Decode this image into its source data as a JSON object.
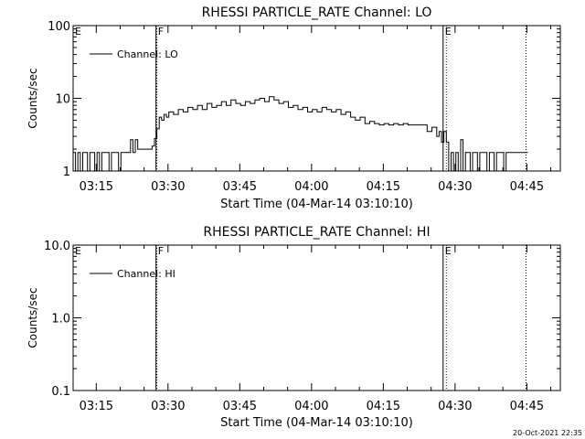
{
  "footer_timestamp": "20-Oct-2021 22:35",
  "chart_data": [
    {
      "type": "line",
      "title": "RHESSI PARTICLE_RATE Channel: LO",
      "xlabel": "Start Time (04-Mar-14 03:10:10)",
      "ylabel": "Counts/sec",
      "y_scale": "log",
      "xlim": [
        "03:10:10",
        "04:52:00"
      ],
      "ylim": [
        1,
        100
      ],
      "x_ticks": [
        "03:15",
        "03:30",
        "03:45",
        "04:00",
        "04:15",
        "04:30",
        "04:45"
      ],
      "y_ticks": [
        "1",
        "10",
        "100"
      ],
      "legend": {
        "position": "top-left",
        "entries": [
          "Channel: LO"
        ]
      },
      "markers": [
        {
          "label": "E",
          "time": "03:10:10"
        },
        {
          "label": "F",
          "time": "03:27:30"
        },
        {
          "label": "E",
          "time": "04:27:30"
        }
      ],
      "dotted_lines": [
        "03:27:40",
        "04:28:10",
        "04:44:50"
      ],
      "series": [
        {
          "name": "Channel: LO",
          "x": [
            "03:10:10",
            "03:10:40",
            "03:11:10",
            "03:11:40",
            "03:12:10",
            "03:12:40",
            "03:13:10",
            "03:13:40",
            "03:14:10",
            "03:14:40",
            "03:15:10",
            "03:15:40",
            "03:16:10",
            "03:16:40",
            "03:17:10",
            "03:17:40",
            "03:18:10",
            "03:18:40",
            "03:19:10",
            "03:19:40",
            "03:20:10",
            "03:20:40",
            "03:21:10",
            "03:21:40",
            "03:22:10",
            "03:22:40",
            "03:23:10",
            "03:23:40",
            "03:24:10",
            "03:24:40",
            "03:25:10",
            "03:25:40",
            "03:26:10",
            "03:26:40",
            "03:27:10",
            "03:27:40",
            "03:28:10",
            "03:28:40",
            "03:29:10",
            "03:29:40",
            "03:30:10",
            "03:31:10",
            "03:32:10",
            "03:33:10",
            "03:34:10",
            "03:35:10",
            "03:36:10",
            "03:37:10",
            "03:38:10",
            "03:39:10",
            "03:40:10",
            "03:41:10",
            "03:42:10",
            "03:43:10",
            "03:44:10",
            "03:45:10",
            "03:46:10",
            "03:47:10",
            "03:48:10",
            "03:49:10",
            "03:50:10",
            "03:51:10",
            "03:52:10",
            "03:53:10",
            "03:54:10",
            "03:55:10",
            "03:56:10",
            "03:57:10",
            "03:58:10",
            "03:59:10",
            "04:00:10",
            "04:01:10",
            "04:02:10",
            "04:03:10",
            "04:04:10",
            "04:05:10",
            "04:06:10",
            "04:07:10",
            "04:08:10",
            "04:09:10",
            "04:10:10",
            "04:11:10",
            "04:12:10",
            "04:13:10",
            "04:14:10",
            "04:15:10",
            "04:16:10",
            "04:17:10",
            "04:18:10",
            "04:19:10",
            "04:20:10",
            "04:21:10",
            "04:22:10",
            "04:23:10",
            "04:24:10",
            "04:25:10",
            "04:26:10",
            "04:26:40",
            "04:27:10",
            "04:27:40",
            "04:28:10",
            "04:28:40",
            "04:29:10",
            "04:29:40",
            "04:30:10",
            "04:30:40",
            "04:31:10",
            "04:31:40",
            "04:32:10",
            "04:32:40",
            "04:33:10",
            "04:33:40",
            "04:34:10",
            "04:34:40",
            "04:35:10",
            "04:35:40",
            "04:36:10",
            "04:36:40",
            "04:37:10",
            "04:37:40",
            "04:38:10",
            "04:38:40",
            "04:39:10",
            "04:39:40",
            "04:40:10",
            "04:40:40",
            "04:41:10",
            "04:42:10",
            "04:43:10",
            "04:44:10",
            "04:44:50"
          ],
          "values": [
            1.8,
            1.0,
            1.8,
            1.0,
            1.8,
            1.8,
            1.0,
            1.8,
            1.8,
            1.0,
            1.8,
            1.0,
            1.8,
            1.8,
            1.8,
            1.0,
            1.8,
            1.8,
            1.8,
            1.0,
            1.8,
            1.8,
            1.8,
            1.8,
            2.7,
            1.8,
            2.7,
            2.0,
            2.0,
            2.0,
            2.0,
            2.0,
            2.0,
            2.2,
            2.8,
            3.8,
            5.5,
            5.0,
            6.0,
            5.5,
            6.5,
            6.0,
            7.0,
            6.5,
            7.5,
            7.0,
            8.0,
            7.0,
            8.5,
            7.5,
            8.0,
            9.0,
            8.0,
            9.5,
            8.5,
            8.0,
            9.0,
            8.5,
            9.5,
            10.0,
            9.0,
            10.5,
            9.5,
            8.5,
            9.0,
            7.5,
            8.0,
            7.0,
            7.5,
            6.5,
            7.0,
            6.5,
            7.5,
            7.0,
            6.5,
            7.0,
            6.0,
            6.5,
            5.5,
            5.0,
            5.5,
            4.5,
            4.8,
            4.5,
            4.3,
            4.5,
            4.3,
            4.5,
            4.3,
            4.5,
            4.3,
            4.3,
            4.3,
            4.3,
            3.5,
            4.0,
            3.0,
            3.5,
            2.5,
            3.5,
            2.5,
            1.0,
            1.8,
            1.0,
            1.8,
            1.0,
            2.7,
            1.0,
            1.8,
            1.8,
            1.0,
            1.8,
            1.8,
            1.0,
            1.8,
            1.8,
            1.8,
            1.0,
            1.8,
            1.8,
            1.0,
            1.8,
            1.8,
            1.8,
            1.0,
            1.8,
            1.8,
            1.8,
            1.8,
            1.8,
            1.8
          ]
        }
      ]
    },
    {
      "type": "line",
      "title": "RHESSI PARTICLE_RATE Channel: HI",
      "xlabel": "Start Time (04-Mar-14 03:10:10)",
      "ylabel": "Counts/sec",
      "y_scale": "log",
      "xlim": [
        "03:10:10",
        "04:52:00"
      ],
      "ylim": [
        0.1,
        10
      ],
      "x_ticks": [
        "03:15",
        "03:30",
        "03:45",
        "04:00",
        "04:15",
        "04:30",
        "04:45"
      ],
      "y_ticks": [
        "0.1",
        "1.0",
        "10.0"
      ],
      "legend": {
        "position": "top-left",
        "entries": [
          "Channel: HI"
        ]
      },
      "markers": [
        {
          "label": "E",
          "time": "03:10:10"
        },
        {
          "label": "F",
          "time": "03:27:30"
        },
        {
          "label": "E",
          "time": "04:27:30"
        }
      ],
      "dotted_lines": [
        "03:27:40",
        "04:28:10",
        "04:44:50"
      ],
      "series": [
        {
          "name": "Channel: HI",
          "x": [],
          "values": []
        }
      ]
    }
  ]
}
